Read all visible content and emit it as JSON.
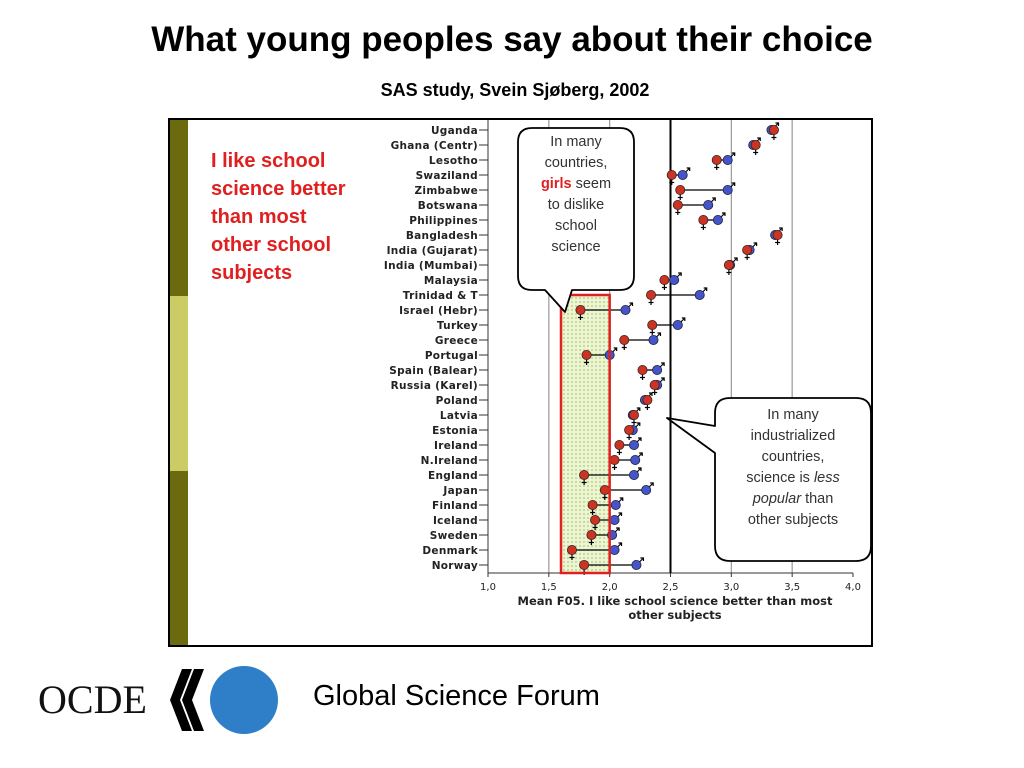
{
  "header": {
    "title": "What young peoples say about their choice",
    "subtitle": "SAS study, Svein Sjøberg, 2002"
  },
  "chart_data": {
    "type": "scatter",
    "statement": [
      "I like school",
      "science better",
      "than most",
      "other school",
      "subjects"
    ],
    "xlabel": [
      "Mean F05. I like school science better than most",
      "other subjects"
    ],
    "xlim": [
      1.0,
      4.0
    ],
    "xticks": [
      "1,0",
      "1,5",
      "2,0",
      "2,5",
      "3,0",
      "3,5",
      "4,0"
    ],
    "reference_line": 2.5,
    "highlight_range": [
      1.6,
      2.0
    ],
    "colors": {
      "girls": "#cc3322",
      "boys": "#4455cc",
      "highlight": "#e02020",
      "band_dark": "#6b6a0f",
      "band_light": "#cccc66"
    },
    "countries": [
      {
        "name": "Uganda",
        "girls": 3.35,
        "boys": 3.33
      },
      {
        "name": "Ghana (Centr)",
        "girls": 3.2,
        "boys": 3.18
      },
      {
        "name": "Lesotho",
        "girls": 2.88,
        "boys": 2.97
      },
      {
        "name": "Swaziland",
        "girls": 2.51,
        "boys": 2.6
      },
      {
        "name": "Zimbabwe",
        "girls": 2.58,
        "boys": 2.97
      },
      {
        "name": "Botswana",
        "girls": 2.56,
        "boys": 2.81
      },
      {
        "name": "Philippines",
        "girls": 2.77,
        "boys": 2.89
      },
      {
        "name": "Bangladesh",
        "girls": 3.38,
        "boys": 3.36
      },
      {
        "name": "India (Gujarat)",
        "girls": 3.13,
        "boys": 3.15
      },
      {
        "name": "India (Mumbai)",
        "girls": 2.98,
        "boys": 2.99
      },
      {
        "name": "Malaysia",
        "girls": 2.45,
        "boys": 2.53
      },
      {
        "name": "Trinidad & T",
        "girls": 2.34,
        "boys": 2.74
      },
      {
        "name": "Israel (Hebr)",
        "girls": 1.76,
        "boys": 2.13
      },
      {
        "name": "Turkey",
        "girls": 2.35,
        "boys": 2.56
      },
      {
        "name": "Greece",
        "girls": 2.12,
        "boys": 2.36
      },
      {
        "name": "Portugal",
        "girls": 1.81,
        "boys": 2.0
      },
      {
        "name": "Spain (Balear)",
        "girls": 2.27,
        "boys": 2.39
      },
      {
        "name": "Russia (Karel)",
        "girls": 2.37,
        "boys": 2.39
      },
      {
        "name": "Poland",
        "girls": 2.31,
        "boys": 2.29
      },
      {
        "name": "Latvia",
        "girls": 2.2,
        "boys": 2.19
      },
      {
        "name": "Estonia",
        "girls": 2.16,
        "boys": 2.19
      },
      {
        "name": "Ireland",
        "girls": 2.08,
        "boys": 2.2
      },
      {
        "name": "N.Ireland",
        "girls": 2.04,
        "boys": 2.21
      },
      {
        "name": "England",
        "girls": 1.79,
        "boys": 2.2
      },
      {
        "name": "Japan",
        "girls": 1.96,
        "boys": 2.3
      },
      {
        "name": "Finland",
        "girls": 1.86,
        "boys": 2.05
      },
      {
        "name": "Iceland",
        "girls": 1.88,
        "boys": 2.04
      },
      {
        "name": "Sweden",
        "girls": 1.85,
        "boys": 2.02
      },
      {
        "name": "Denmark",
        "girls": 1.69,
        "boys": 2.04
      },
      {
        "name": "Norway",
        "girls": 1.79,
        "boys": 2.22
      }
    ],
    "callouts": {
      "girls": {
        "lines": [
          [
            "In many"
          ],
          [
            "countries,"
          ],
          [
            "girls",
            " seem"
          ],
          [
            "to dislike"
          ],
          [
            "school"
          ],
          [
            "science"
          ]
        ]
      },
      "industrialized": {
        "lines": [
          [
            "In many"
          ],
          [
            "industrialized"
          ],
          [
            "countries,"
          ],
          [
            "science is ",
            "less"
          ],
          [
            "popular",
            " than"
          ],
          [
            "other subjects"
          ]
        ]
      }
    }
  },
  "footer": {
    "logo_text": "OCDE",
    "forum": "Global Science Forum"
  }
}
